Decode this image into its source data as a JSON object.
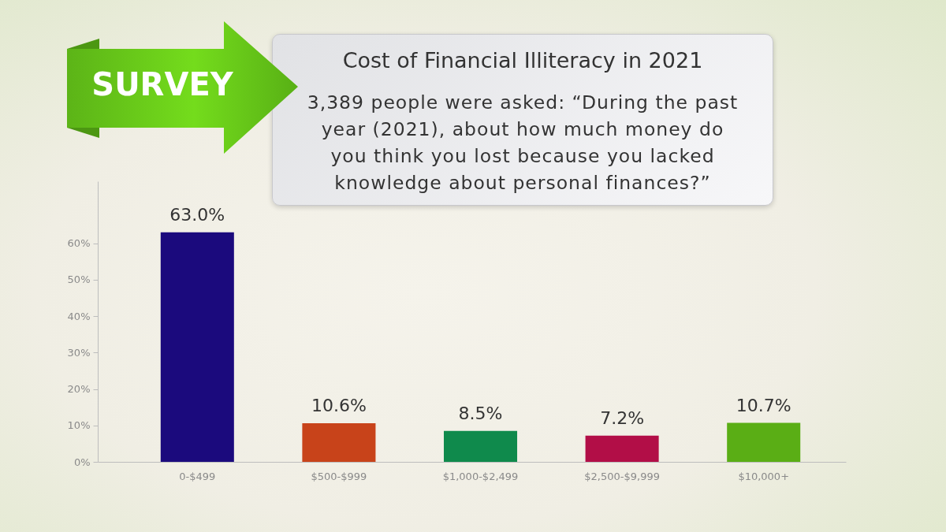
{
  "chart_data": {
    "type": "bar",
    "title": "Cost of Financial Illiteracy in 2021",
    "subtitle": "3,389 people were asked: “During the past year (2021), about how much money do you think you lost because you lacked knowledge about personal finances?”",
    "annotations": [
      "SURVEY"
    ],
    "categories": [
      "0-$499",
      "$500-$999",
      "$1,000-$2,499",
      "$2,500-$9,999",
      "$10,000+"
    ],
    "values": [
      63.0,
      10.6,
      8.5,
      7.2,
      10.7
    ],
    "colors": [
      "#1b0a7d",
      "#c8431a",
      "#0f8a4c",
      "#b20e47",
      "#5aae15"
    ],
    "value_labels": [
      "63.0%",
      "10.6%",
      "8.5%",
      "7.2%",
      "10.7%"
    ],
    "ylim": [
      0,
      77
    ],
    "yticks": [
      {
        "value": 0,
        "label": "0%"
      },
      {
        "value": 10,
        "label": "10%"
      },
      {
        "value": 20,
        "label": "20%"
      },
      {
        "value": 30,
        "label": "30%"
      },
      {
        "value": 40,
        "label": "40%"
      },
      {
        "value": 50,
        "label": "50%"
      },
      {
        "value": 60,
        "label": "60%"
      }
    ]
  }
}
